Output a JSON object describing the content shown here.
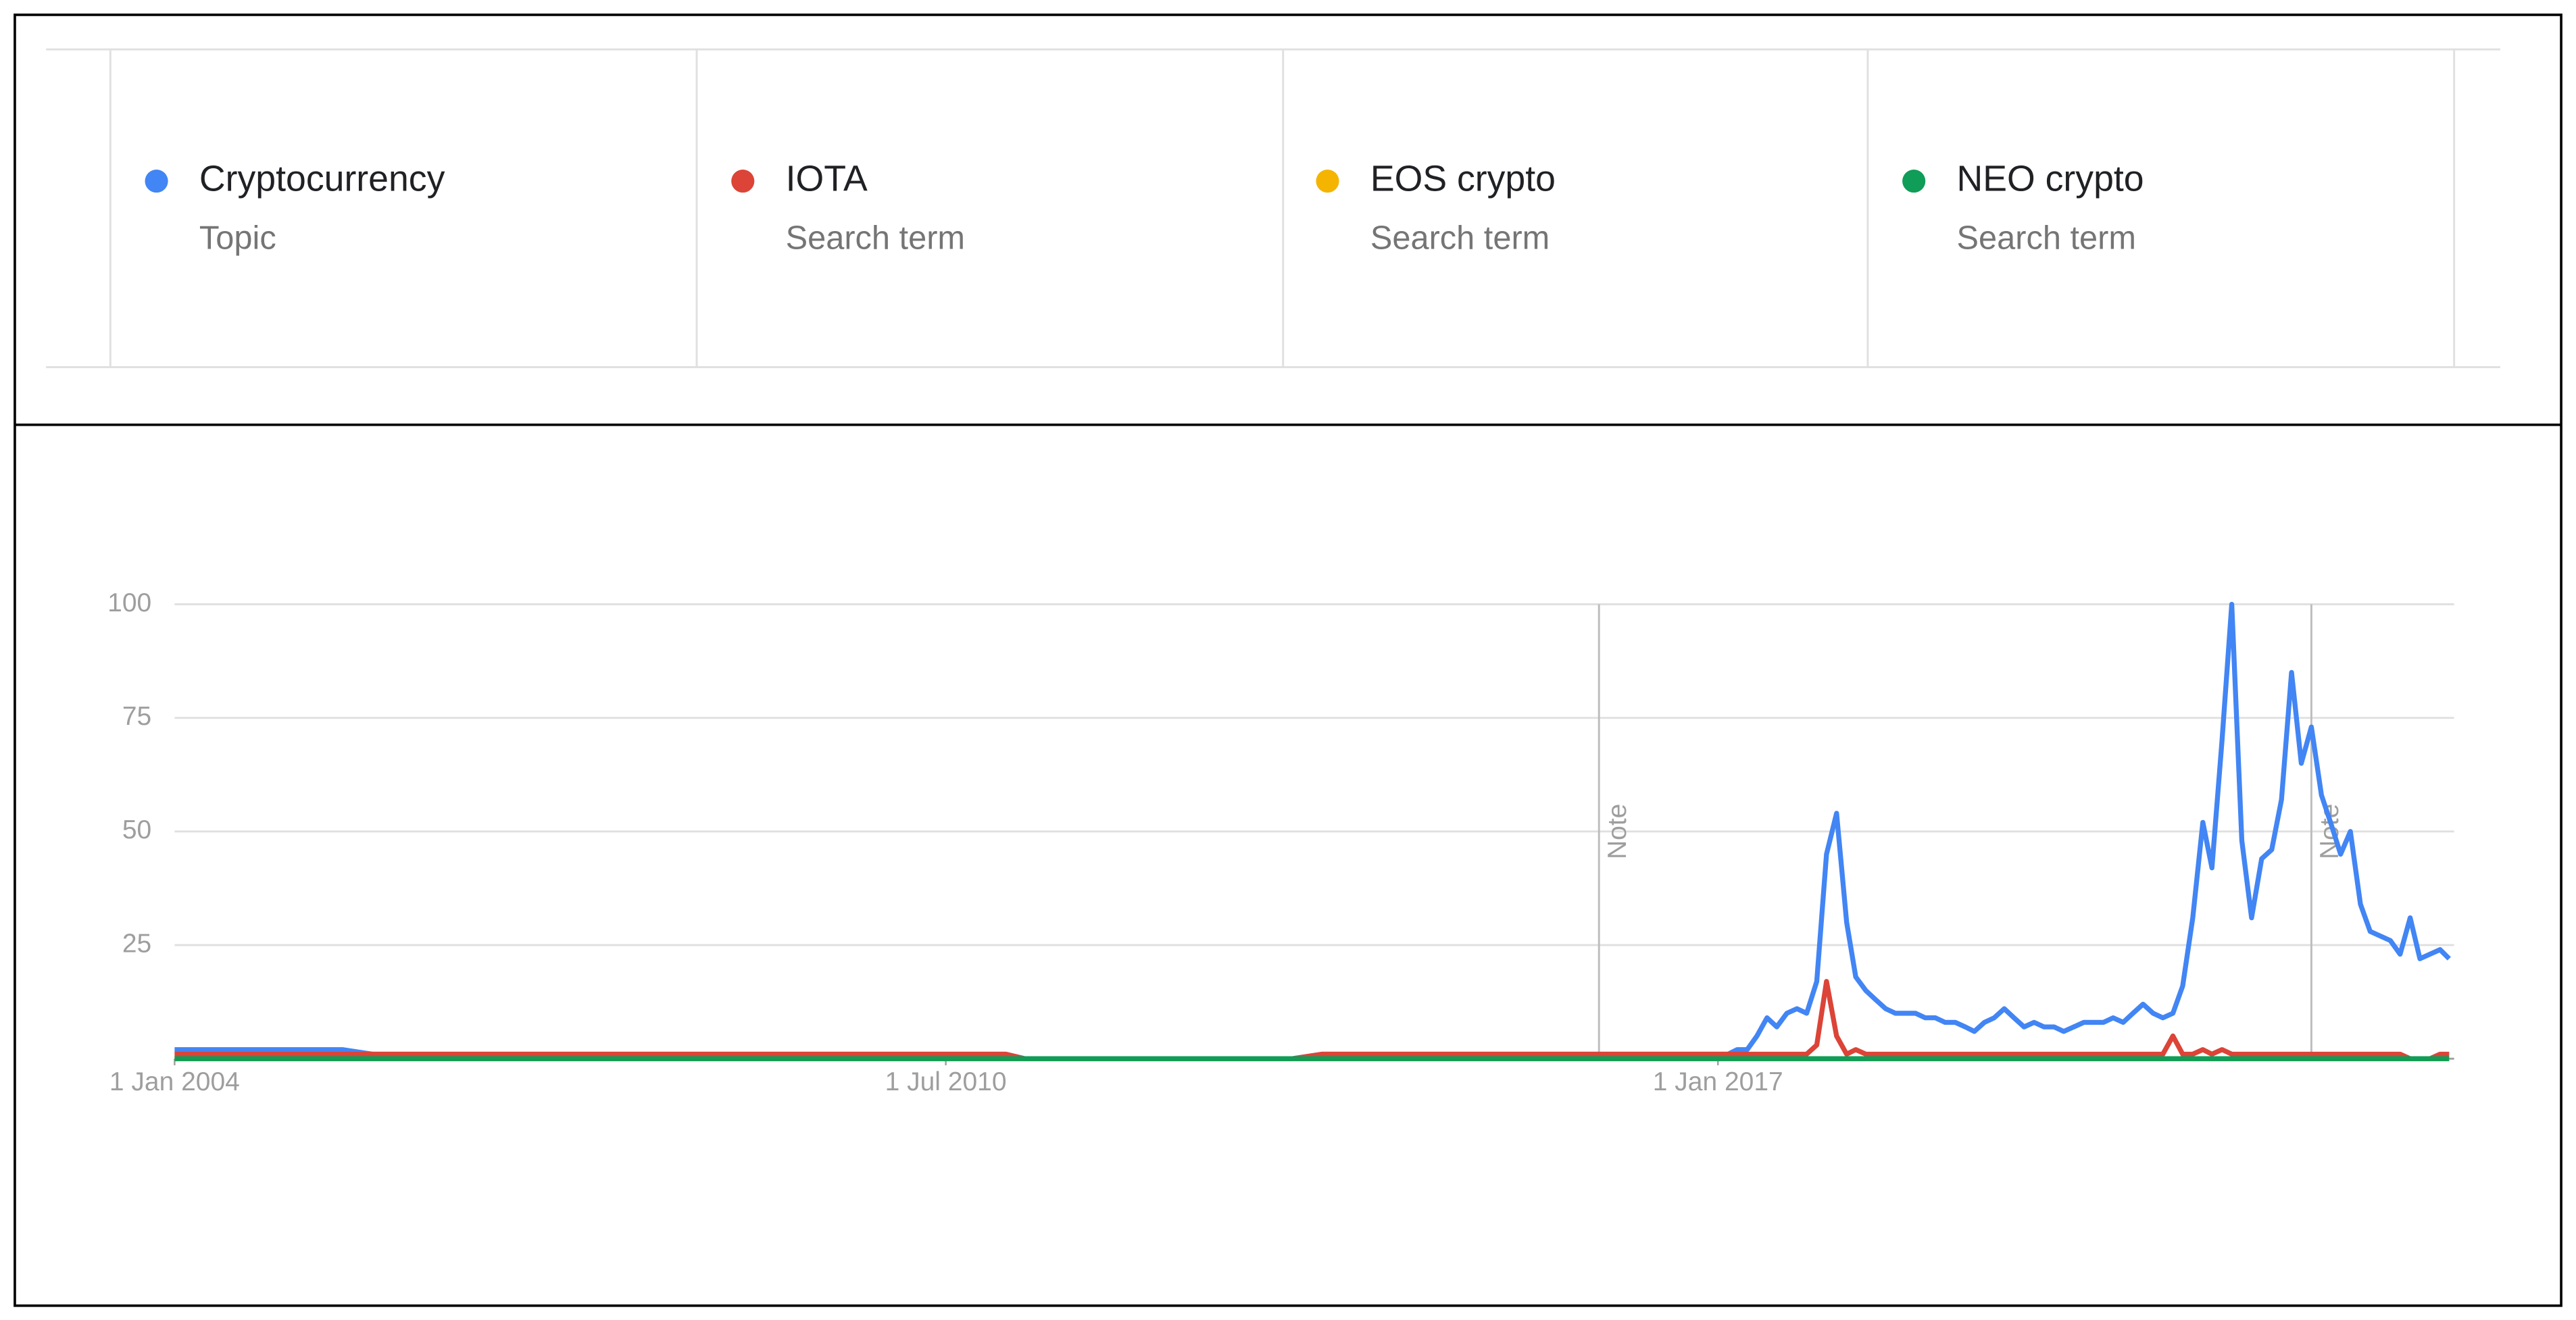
{
  "chart_data": {
    "type": "line",
    "x": [
      "2004-01-01",
      "2005-06-01",
      "2005-09-01",
      "2011-01-01",
      "2011-03-01",
      "2013-06-01",
      "2013-09-01",
      "2016-12-01",
      "2017-01-01",
      "2017-02-01",
      "2017-03-01",
      "2017-04-01",
      "2017-05-01",
      "2017-06-01",
      "2017-07-01",
      "2017-08-01",
      "2017-09-01",
      "2017-10-01",
      "2017-11-01",
      "2017-12-01",
      "2018-01-01",
      "2018-02-01",
      "2018-03-01",
      "2018-04-01",
      "2018-05-01",
      "2018-06-01",
      "2018-07-01",
      "2018-08-01",
      "2018-09-01",
      "2018-10-01",
      "2018-11-01",
      "2018-12-01",
      "2019-01-01",
      "2019-02-01",
      "2019-03-01",
      "2019-04-01",
      "2019-05-01",
      "2019-06-01",
      "2019-07-01",
      "2019-08-01",
      "2019-09-01",
      "2019-10-01",
      "2019-11-01",
      "2019-12-01",
      "2020-01-01",
      "2020-02-01",
      "2020-03-01",
      "2020-04-01",
      "2020-05-01",
      "2020-06-01",
      "2020-07-01",
      "2020-08-01",
      "2020-09-01",
      "2020-10-01",
      "2020-11-01",
      "2020-12-01",
      "2021-01-01",
      "2021-02-01",
      "2021-03-01",
      "2021-04-01",
      "2021-05-01",
      "2021-06-01",
      "2021-07-01",
      "2021-08-01",
      "2021-09-01",
      "2021-10-01",
      "2021-11-01",
      "2021-12-01",
      "2022-01-01",
      "2022-02-01",
      "2022-03-01",
      "2022-04-01",
      "2022-05-01",
      "2022-06-01",
      "2022-07-01",
      "2022-08-01",
      "2022-09-01",
      "2022-10-01",
      "2022-11-01",
      "2022-12-01",
      "2023-01-01",
      "2023-02-01",
      "2023-03-01"
    ],
    "series": [
      {
        "name": "Cryptocurrency",
        "subtitle": "Topic",
        "color": "#4285f4",
        "values": [
          2,
          2,
          1,
          1,
          0,
          0,
          1,
          1,
          1,
          1,
          2,
          2,
          5,
          9,
          7,
          10,
          11,
          10,
          17,
          45,
          54,
          30,
          18,
          15,
          13,
          11,
          10,
          10,
          10,
          9,
          9,
          8,
          8,
          7,
          6,
          8,
          9,
          11,
          9,
          7,
          8,
          7,
          7,
          6,
          7,
          8,
          8,
          8,
          9,
          8,
          10,
          12,
          10,
          9,
          10,
          16,
          31,
          52,
          42,
          70,
          100,
          48,
          31,
          44,
          46,
          57,
          85,
          65,
          73,
          58,
          52,
          45,
          50,
          34,
          28,
          27,
          26,
          23,
          31,
          22,
          23,
          24,
          22
        ]
      },
      {
        "name": "IOTA",
        "subtitle": "Search term",
        "color": "#db4437",
        "values": [
          1,
          1,
          1,
          1,
          0,
          0,
          1,
          1,
          1,
          1,
          1,
          1,
          1,
          1,
          1,
          1,
          1,
          1,
          3,
          17,
          5,
          1,
          2,
          1,
          1,
          1,
          1,
          1,
          1,
          1,
          1,
          1,
          1,
          1,
          1,
          1,
          1,
          1,
          1,
          1,
          1,
          1,
          1,
          1,
          1,
          1,
          1,
          1,
          1,
          1,
          1,
          1,
          1,
          1,
          5,
          1,
          1,
          2,
          1,
          2,
          1,
          1,
          1,
          1,
          1,
          1,
          1,
          1,
          1,
          1,
          1,
          1,
          1,
          1,
          1,
          1,
          1,
          1,
          0,
          0,
          0,
          1,
          1
        ]
      },
      {
        "name": "EOS crypto",
        "subtitle": "Search term",
        "color": "#f4b400",
        "values": [
          0,
          0,
          0,
          0,
          0,
          0,
          0,
          0,
          0,
          0,
          0,
          0,
          0,
          0,
          0,
          0,
          0,
          0,
          0,
          0,
          0,
          0,
          0,
          0,
          0,
          0,
          0,
          0,
          0,
          0,
          0,
          0,
          0,
          0,
          0,
          0,
          0,
          0,
          0,
          0,
          0,
          0,
          0,
          0,
          0,
          0,
          0,
          0,
          0,
          0,
          0,
          0,
          0,
          0,
          0,
          0,
          0,
          0,
          0,
          0,
          0,
          0,
          0,
          0,
          0,
          0,
          0,
          0,
          0,
          0,
          0,
          0,
          0,
          0,
          0,
          0,
          0,
          0,
          0,
          0,
          0,
          0,
          0
        ]
      },
      {
        "name": "NEO crypto",
        "subtitle": "Search term",
        "color": "#0f9d58",
        "values": [
          0,
          0,
          0,
          0,
          0,
          0,
          0,
          0,
          0,
          0,
          0,
          0,
          0,
          0,
          0,
          0,
          0,
          0,
          0,
          0,
          0,
          0,
          0,
          0,
          0,
          0,
          0,
          0,
          0,
          0,
          0,
          0,
          0,
          0,
          0,
          0,
          0,
          0,
          0,
          0,
          0,
          0,
          0,
          0,
          0,
          0,
          0,
          0,
          0,
          0,
          0,
          0,
          0,
          0,
          0,
          0,
          0,
          0,
          0,
          0,
          0,
          0,
          0,
          0,
          0,
          0,
          0,
          0,
          0,
          0,
          0,
          0,
          0,
          0,
          0,
          0,
          0,
          0,
          0,
          0,
          0,
          0,
          0
        ]
      }
    ],
    "xlim": [
      "2004-01-01",
      "2023-03-01"
    ],
    "xticks": [
      {
        "value": "2004-01-01",
        "label": "1 Jan 2004"
      },
      {
        "value": "2010-07-01",
        "label": "1 Jul 2010"
      },
      {
        "value": "2017-01-01",
        "label": "1 Jan 2017"
      }
    ],
    "ylim": [
      0,
      100
    ],
    "yticks": [
      25,
      50,
      75,
      100
    ],
    "grid": true,
    "annotations": [
      {
        "x": "2016-01-01",
        "text": "Note"
      },
      {
        "x": "2022-01-01",
        "text": "Note"
      }
    ]
  }
}
